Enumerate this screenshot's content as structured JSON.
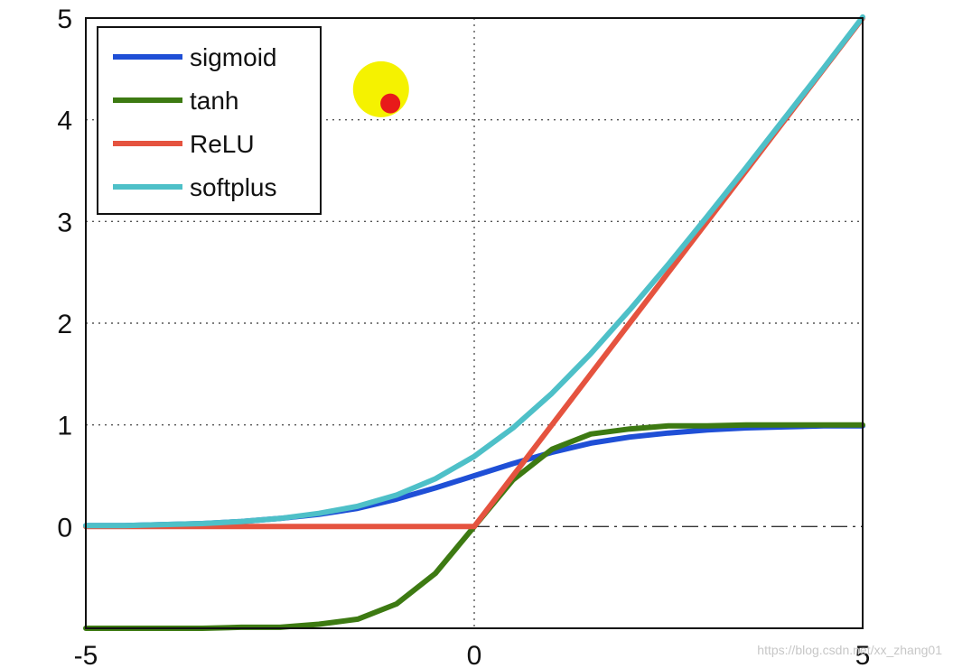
{
  "chart_data": {
    "type": "line",
    "title": "",
    "xlabel": "",
    "ylabel": "",
    "xlim": [
      -5,
      5
    ],
    "ylim": [
      -1,
      5
    ],
    "grid": true,
    "legend_position": "top-left",
    "x_ticks": [
      {
        "value": -5,
        "label": "-5"
      },
      {
        "value": 0,
        "label": "0"
      },
      {
        "value": 5,
        "label": "5"
      }
    ],
    "y_ticks": [
      {
        "value": 0,
        "label": "0"
      },
      {
        "value": 1,
        "label": "1"
      },
      {
        "value": 2,
        "label": "2"
      },
      {
        "value": 3,
        "label": "3"
      },
      {
        "value": 4,
        "label": "4"
      },
      {
        "value": 5,
        "label": "5"
      }
    ],
    "x": [
      -5,
      -4.5,
      -4,
      -3.5,
      -3,
      -2.5,
      -2,
      -1.5,
      -1,
      -0.5,
      0,
      0.5,
      1,
      1.5,
      2,
      2.5,
      3,
      3.5,
      4,
      4.5,
      5
    ],
    "series": [
      {
        "name": "sigmoid",
        "color": "#1f4fd6",
        "values": [
          0.01,
          0.01,
          0.02,
          0.03,
          0.05,
          0.08,
          0.12,
          0.18,
          0.27,
          0.38,
          0.5,
          0.62,
          0.73,
          0.82,
          0.88,
          0.92,
          0.95,
          0.97,
          0.98,
          0.99,
          0.99
        ]
      },
      {
        "name": "tanh",
        "color": "#3d7a12",
        "values": [
          -1,
          -1,
          -1,
          -1,
          -0.99,
          -0.99,
          -0.96,
          -0.91,
          -0.76,
          -0.46,
          0,
          0.46,
          0.76,
          0.91,
          0.96,
          0.99,
          0.99,
          1,
          1,
          1,
          1
        ]
      },
      {
        "name": "ReLU",
        "color": "#e5533f",
        "values": [
          0,
          0,
          0,
          0,
          0,
          0,
          0,
          0,
          0,
          0,
          0,
          0.5,
          1,
          1.5,
          2,
          2.5,
          3,
          3.5,
          4,
          4.5,
          5
        ]
      },
      {
        "name": "softplus",
        "color": "#4ec0c8",
        "values": [
          0.01,
          0.01,
          0.02,
          0.03,
          0.05,
          0.08,
          0.13,
          0.2,
          0.31,
          0.47,
          0.69,
          0.97,
          1.31,
          1.7,
          2.13,
          2.58,
          3.05,
          3.53,
          4.02,
          4.51,
          5.01
        ]
      }
    ],
    "annotations": [
      {
        "type": "cursor-highlight",
        "x": -1.2,
        "y": 4.3,
        "color": "#f5f200"
      },
      {
        "type": "marker",
        "x": -1.08,
        "y": 4.16,
        "color": "#e81a1a"
      }
    ],
    "watermark": "https://blog.csdn.net/xx_zhang01"
  }
}
